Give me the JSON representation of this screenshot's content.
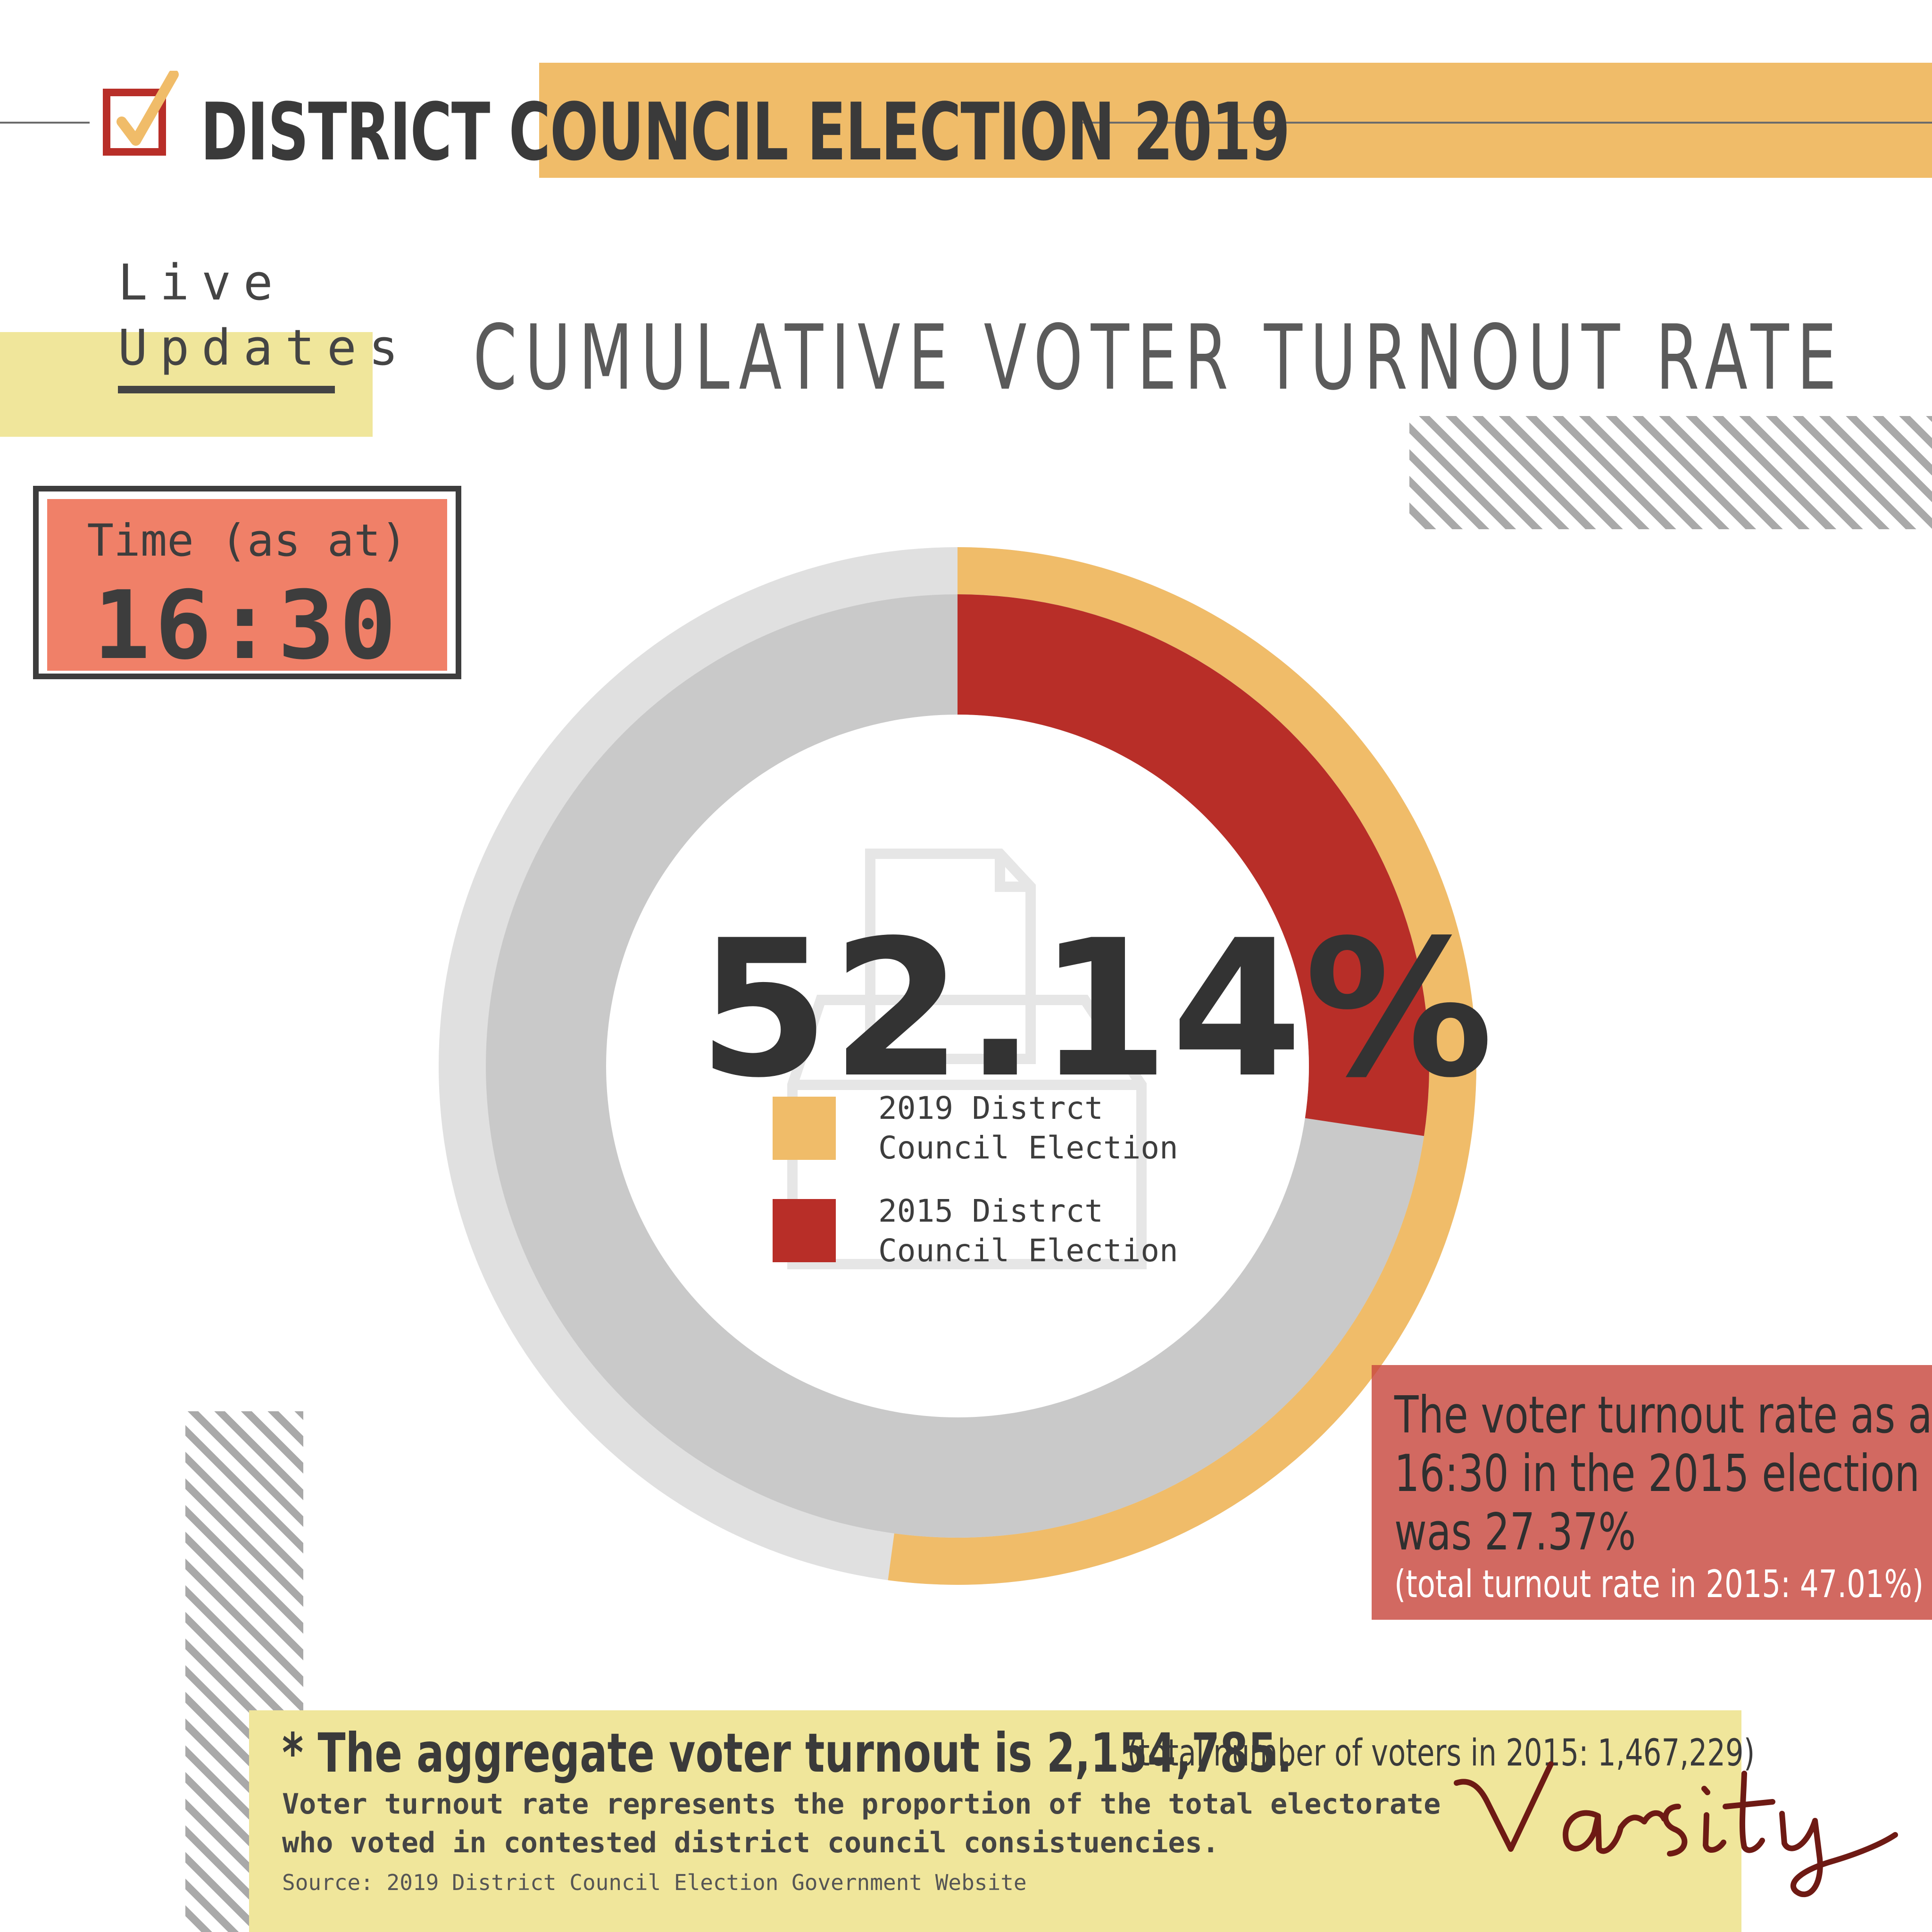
{
  "header": {
    "title": "DISTRICT COUNCIL ELECTION 2019"
  },
  "live_updates": {
    "line1": "Live",
    "line2": "Updates"
  },
  "time_box": {
    "label": "Time (as at)",
    "value": "16:30"
  },
  "colors": {
    "accent_2019": "#f0bc69",
    "accent_2015": "#b82e28",
    "track_outer": "#e0e0e0",
    "track_inner": "#c9c9c9",
    "time_box": "#f08068",
    "note_box": "#c8483e",
    "footer_box": "#f0e69b",
    "logo": "#6e1a14"
  },
  "note": {
    "line1": "The voter turnout rate as at",
    "line2": "16:30 in the 2015 election",
    "line3": "was 27.37%",
    "sub": "(total turnout rate in 2015: 47.01%)"
  },
  "footer": {
    "aggregate_main": "* The aggregate voter turnout is 2,154,785.",
    "aggregate_sub": "(total number of voters in 2015: 1,467,229)",
    "definition_line1": "Voter turnout rate represents the proportion of the total electorate",
    "definition_line2": "who voted in contested district council consistuencies.",
    "source": "Source: 2019 District Council Election Government Website"
  },
  "logo": {
    "text": "Varsity"
  },
  "chart_data": {
    "type": "pie",
    "title": "CUMULATIVE VOTER TURNOUT RATE",
    "center_label": "52.14%",
    "max": 100,
    "series": [
      {
        "name": "2019 Distrct Council Election",
        "value": 52.14,
        "ring": "outer"
      },
      {
        "name": "2015 Distrct Council Election",
        "value": 27.37,
        "ring": "inner"
      }
    ],
    "legend": [
      {
        "line1": "2019 Distrct",
        "line2": "Council Election"
      },
      {
        "line1": "2015 Distrct",
        "line2": "Council Election"
      }
    ],
    "legend_position": "center"
  }
}
